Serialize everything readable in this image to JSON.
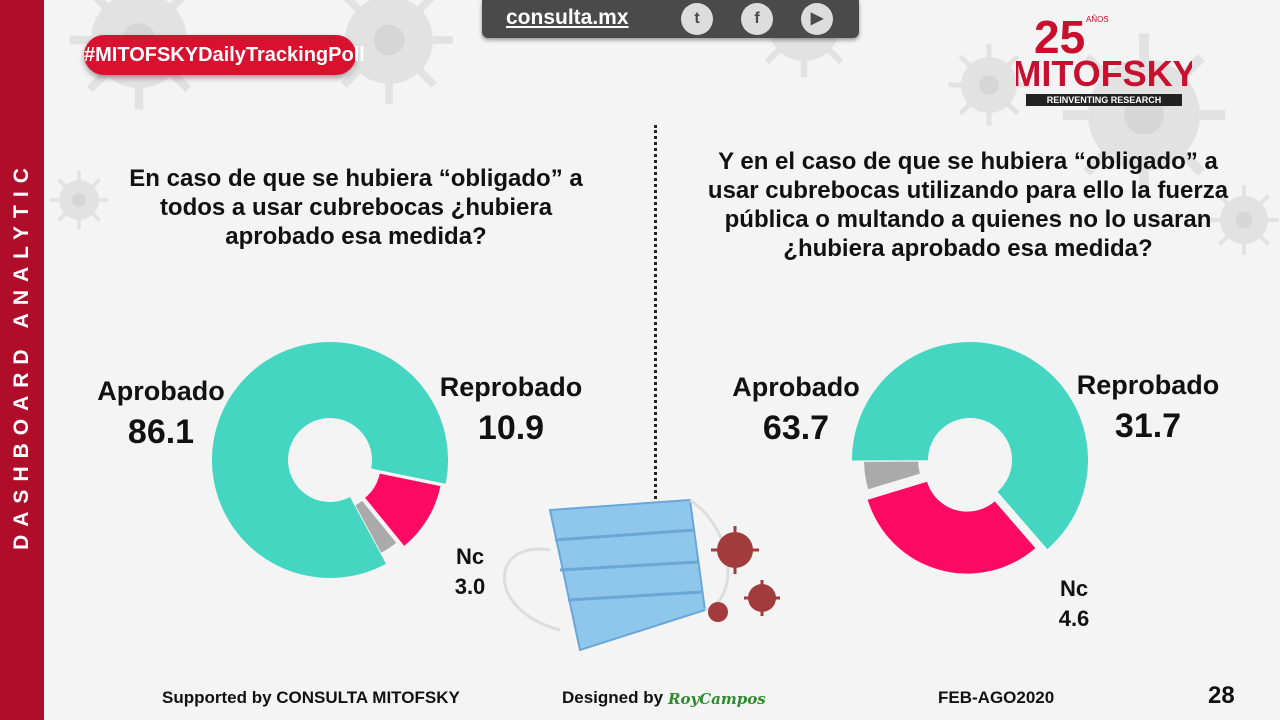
{
  "sidebar": {
    "text": "DASHBOARD ANALYTIC"
  },
  "header": {
    "hashtag": "#MITOFSKYDailyTrackingPoll",
    "site": "consulta.mx",
    "social_icons": [
      "twitter-icon",
      "facebook-icon",
      "youtube-icon"
    ]
  },
  "logo": {
    "years": "25",
    "years_suffix": "AÑOS",
    "brand": "MITOFSKY",
    "tagline": "REINVENTING RESEARCH"
  },
  "colors": {
    "aprobado": "#45d6c2",
    "reprobado": "#ff0a62",
    "nc": "#aaaaaa",
    "accent": "#b00d2a"
  },
  "chart_data": [
    {
      "type": "pie",
      "title": "En caso de que se hubiera “obligado” a todos a usar cubrebocas ¿hubiera aprobado esa medida?",
      "categories": [
        "Aprobado",
        "Reprobado",
        "Nc"
      ],
      "values": [
        86.1,
        10.9,
        3.0
      ],
      "labels": [
        "86.1",
        "10.9",
        "3.0"
      ]
    },
    {
      "type": "pie",
      "title": "Y en el caso de que se hubiera “obligado” a usar cubrebocas utilizando para ello la fuerza pública o multando a quienes no lo usaran ¿hubiera aprobado esa medida?",
      "categories": [
        "Aprobado",
        "Reprobado",
        "Nc"
      ],
      "values": [
        63.7,
        31.7,
        4.6
      ],
      "labels": [
        "63.7",
        "31.7",
        "4.6"
      ]
    }
  ],
  "footer": {
    "supported": "Supported by   CONSULTA   MITOFSKY",
    "designed": "Designed by",
    "designer": "RoyCampos",
    "period": "FEB-AGO2020",
    "page": "28"
  }
}
